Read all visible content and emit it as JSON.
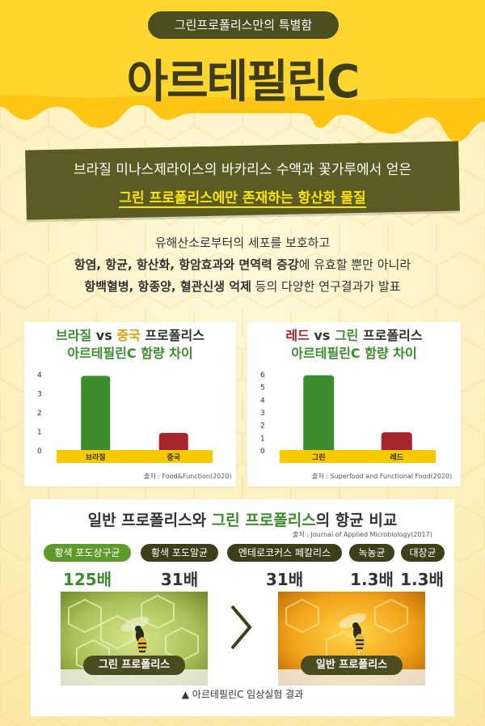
{
  "header": {
    "pill": "그린프로폴리스만의 특별함",
    "title": "아르테필린C"
  },
  "banner": {
    "line1": "브라질 미나스제라이스의 바카리스 수액과 꽃가루에서 얻은",
    "line2": "그린 프로폴리스에만 존재하는 항산화 물질"
  },
  "description": {
    "line1": "유해산소로부터의 세포를 보호하고",
    "line2_bold": "항염, 항균, 항산화, 항암효과와 면역력 증강",
    "line2_rest": "에 유효할 뿐만 아니라",
    "line3_bold": "항백혈병, 항종양, 혈관신생 억제",
    "line3_rest": " 등의 다양한 연구결과가 발표"
  },
  "chart_data": [
    {
      "type": "bar",
      "title_part1": "브라질",
      "title_vs": " vs ",
      "title_part2": "중국",
      "title_part3": " 프로폴리스",
      "title_line2": "아르테필린C 함량 차이",
      "categories": [
        "브라질",
        "중국"
      ],
      "values": [
        3.9,
        0.9
      ],
      "colors": [
        "#3d8b2f",
        "#a4262c"
      ],
      "ylim": [
        0,
        4
      ],
      "yticks": [
        "0",
        "1",
        "2",
        "3",
        "4"
      ],
      "source": "출처 : Food&Function(2020)"
    },
    {
      "type": "bar",
      "title_part1": "레드",
      "title_vs": " vs ",
      "title_part2": "그린",
      "title_part3": " 프로폴리스",
      "title_line2": "아르테필린C 함량 차이",
      "categories": [
        "그린",
        "레드"
      ],
      "values": [
        5.9,
        1.4
      ],
      "colors": [
        "#3d8b2f",
        "#a4262c"
      ],
      "ylim": [
        0,
        6
      ],
      "yticks": [
        "0",
        "1",
        "2",
        "3",
        "4",
        "5",
        "6"
      ],
      "source": "출처 : Superfood and Functional Food(2020)"
    }
  ],
  "comparison": {
    "title_part1": "일반 프로폴리스와 ",
    "title_part2": "그린 프로폴리스",
    "title_part3": "의 항균 비교",
    "source": "출처 : Journal of Applied Microbiology(2017)",
    "items": [
      {
        "label": "황색 포도상구균",
        "value": "125배"
      },
      {
        "label": "황색 포도알균",
        "value": "31배"
      },
      {
        "label": "엔테로코커스 페칼리스",
        "value": "31배"
      },
      {
        "label": "녹농균",
        "value": "1.3배"
      },
      {
        "label": "대장균",
        "value": "1.3배"
      }
    ],
    "photo_left_label": "그린 프로폴리스",
    "photo_right_label": "일반 프로폴리스",
    "caption": "▲ 아르테필린C 임상실험 결과"
  }
}
